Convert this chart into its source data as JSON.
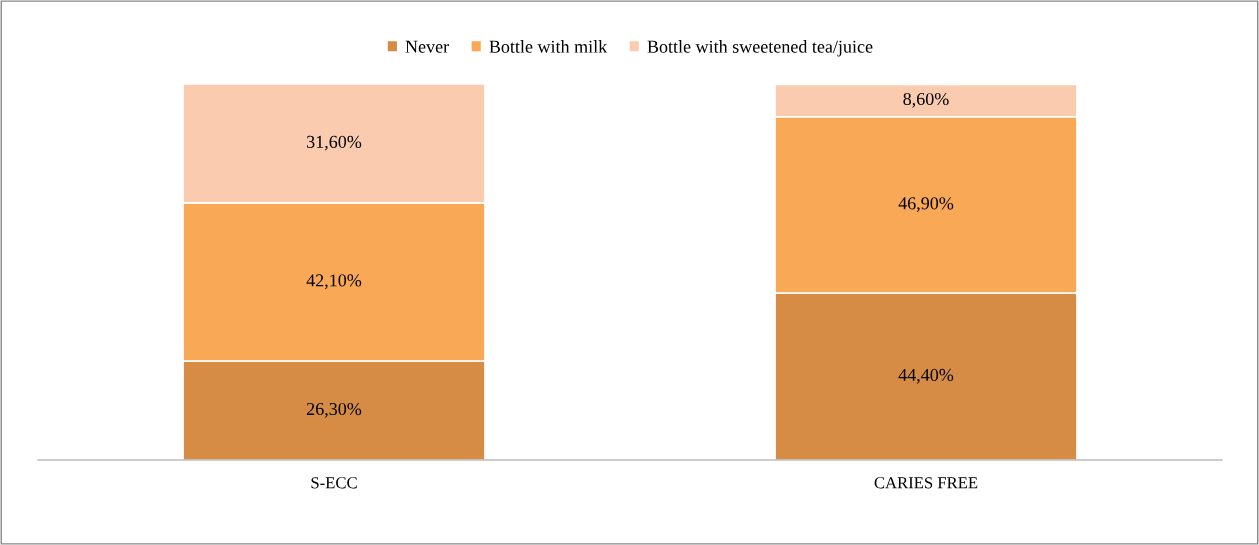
{
  "chart_data": {
    "type": "bar",
    "stacked": true,
    "categories": [
      "S-ECC",
      "CARIES FREE"
    ],
    "ylim": [
      0,
      100
    ],
    "tick_labels": "x",
    "legend": "top",
    "grid": false,
    "series": [
      {
        "name": "Never",
        "color": "#d68c45",
        "values": [
          26.3,
          44.4
        ],
        "value_labels": [
          "26,30%",
          "44,40%"
        ]
      },
      {
        "name": "Bottle with milk",
        "color": "#f9a856",
        "values": [
          42.1,
          46.9
        ],
        "value_labels": [
          "42,10%",
          "46,90%"
        ]
      },
      {
        "name": "Bottle with sweetened tea/juice",
        "color": "#fbcbb0",
        "values": [
          31.6,
          8.6
        ],
        "value_labels": [
          "31,60%",
          "8,60%"
        ]
      }
    ]
  }
}
